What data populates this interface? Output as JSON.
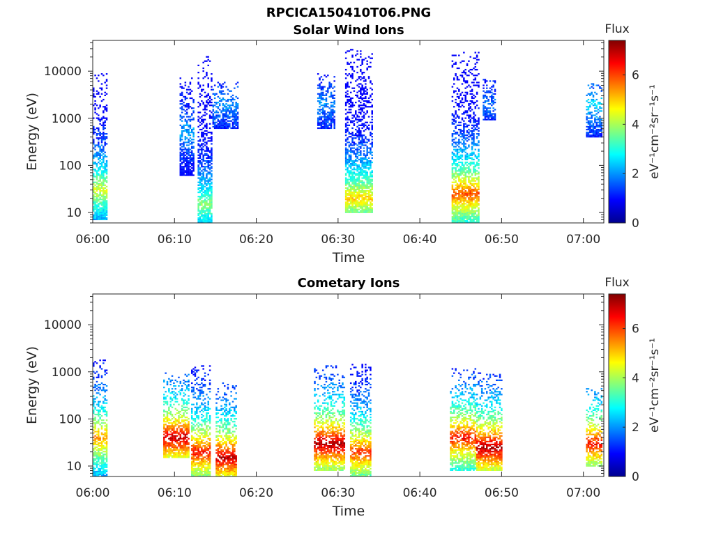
{
  "figure": {
    "title": "RPCICA150410T06.PNG"
  },
  "chart_data": [
    {
      "type": "heatmap",
      "title": "Solar Wind Ions",
      "xlabel": "Time",
      "ylabel": "Energy (eV)",
      "x_ticks": [
        "06:00",
        "06:10",
        "06:20",
        "06:30",
        "06:40",
        "06:50",
        "07:00"
      ],
      "xlim": [
        "06:00",
        "07:02.5"
      ],
      "y_scale": "log",
      "y_ticks": [
        10,
        100,
        1000,
        10000
      ],
      "ylim": [
        6,
        45000
      ],
      "colorbar": {
        "title": "Flux",
        "label": "eV⁻¹cm⁻²sr⁻¹s⁻¹",
        "ticks": [
          0,
          2,
          4,
          6
        ],
        "range": [
          0,
          7.4
        ],
        "colormap": "jet"
      },
      "bursts": [
        {
          "time": "06:00.9",
          "width_min": 1.8,
          "hi_e": 9000,
          "lo_e": 7,
          "hot_e": 30,
          "peak": 4.4
        },
        {
          "time": "06:11.5",
          "width_min": 1.5,
          "hi_e": 8000,
          "lo_e": 60,
          "hot_e": 500,
          "peak": 2.2
        },
        {
          "time": "06:13.8",
          "width_min": 1.6,
          "hi_e": 22000,
          "lo_e": 6,
          "hot_e": 15,
          "peak": 3.8
        },
        {
          "time": "06:16.2",
          "width_min": 3.0,
          "hi_e": 6000,
          "lo_e": 600,
          "hot_e": 2000,
          "peak": 2.0
        },
        {
          "time": "06:28.5",
          "width_min": 2.0,
          "hi_e": 9000,
          "lo_e": 600,
          "hot_e": 2000,
          "peak": 2.0
        },
        {
          "time": "06:32.5",
          "width_min": 3.2,
          "hi_e": 30000,
          "lo_e": 10,
          "hot_e": 20,
          "peak": 5.0
        },
        {
          "time": "06:45.5",
          "width_min": 3.2,
          "hi_e": 26000,
          "lo_e": 6,
          "hot_e": 25,
          "peak": 6.0
        },
        {
          "time": "06:48.5",
          "width_min": 1.5,
          "hi_e": 8000,
          "lo_e": 900,
          "hot_e": 2000,
          "peak": 1.8
        },
        {
          "time": "07:01.5",
          "width_min": 2.0,
          "hi_e": 6000,
          "lo_e": 400,
          "hot_e": 2000,
          "peak": 2.5
        }
      ]
    },
    {
      "type": "heatmap",
      "title": "Cometary Ions",
      "xlabel": "Time",
      "ylabel": "Energy (eV)",
      "x_ticks": [
        "06:00",
        "06:10",
        "06:20",
        "06:30",
        "06:40",
        "06:50",
        "07:00"
      ],
      "xlim": [
        "06:00",
        "07:02.5"
      ],
      "y_scale": "log",
      "y_ticks": [
        10,
        100,
        1000,
        10000
      ],
      "ylim": [
        6,
        45000
      ],
      "colorbar": {
        "title": "Flux",
        "label": "eV⁻¹cm⁻²sr⁻¹s⁻¹",
        "ticks": [
          0,
          2,
          4,
          6
        ],
        "range": [
          0,
          7.4
        ],
        "colormap": "jet"
      },
      "bursts": [
        {
          "time": "06:00.9",
          "width_min": 1.8,
          "hi_e": 1800,
          "lo_e": 6,
          "hot_e": 40,
          "peak": 5.5
        },
        {
          "time": "06:10.2",
          "width_min": 3.0,
          "hi_e": 1000,
          "lo_e": 15,
          "hot_e": 40,
          "peak": 7.0
        },
        {
          "time": "06:13.3",
          "width_min": 2.2,
          "hi_e": 1400,
          "lo_e": 6,
          "hot_e": 20,
          "peak": 6.5
        },
        {
          "time": "06:16.3",
          "width_min": 2.5,
          "hi_e": 600,
          "lo_e": 6,
          "hot_e": 15,
          "peak": 7.0
        },
        {
          "time": "06:29.0",
          "width_min": 3.5,
          "hi_e": 1400,
          "lo_e": 8,
          "hot_e": 30,
          "peak": 7.2
        },
        {
          "time": "06:32.8",
          "width_min": 2.5,
          "hi_e": 1800,
          "lo_e": 6,
          "hot_e": 20,
          "peak": 6.2
        },
        {
          "time": "06:45.3",
          "width_min": 3.0,
          "hi_e": 1200,
          "lo_e": 8,
          "hot_e": 40,
          "peak": 6.5
        },
        {
          "time": "06:48.5",
          "width_min": 3.0,
          "hi_e": 1000,
          "lo_e": 8,
          "hot_e": 25,
          "peak": 7.2
        },
        {
          "time": "07:01.5",
          "width_min": 2.0,
          "hi_e": 500,
          "lo_e": 10,
          "hot_e": 30,
          "peak": 6.5
        }
      ]
    }
  ]
}
